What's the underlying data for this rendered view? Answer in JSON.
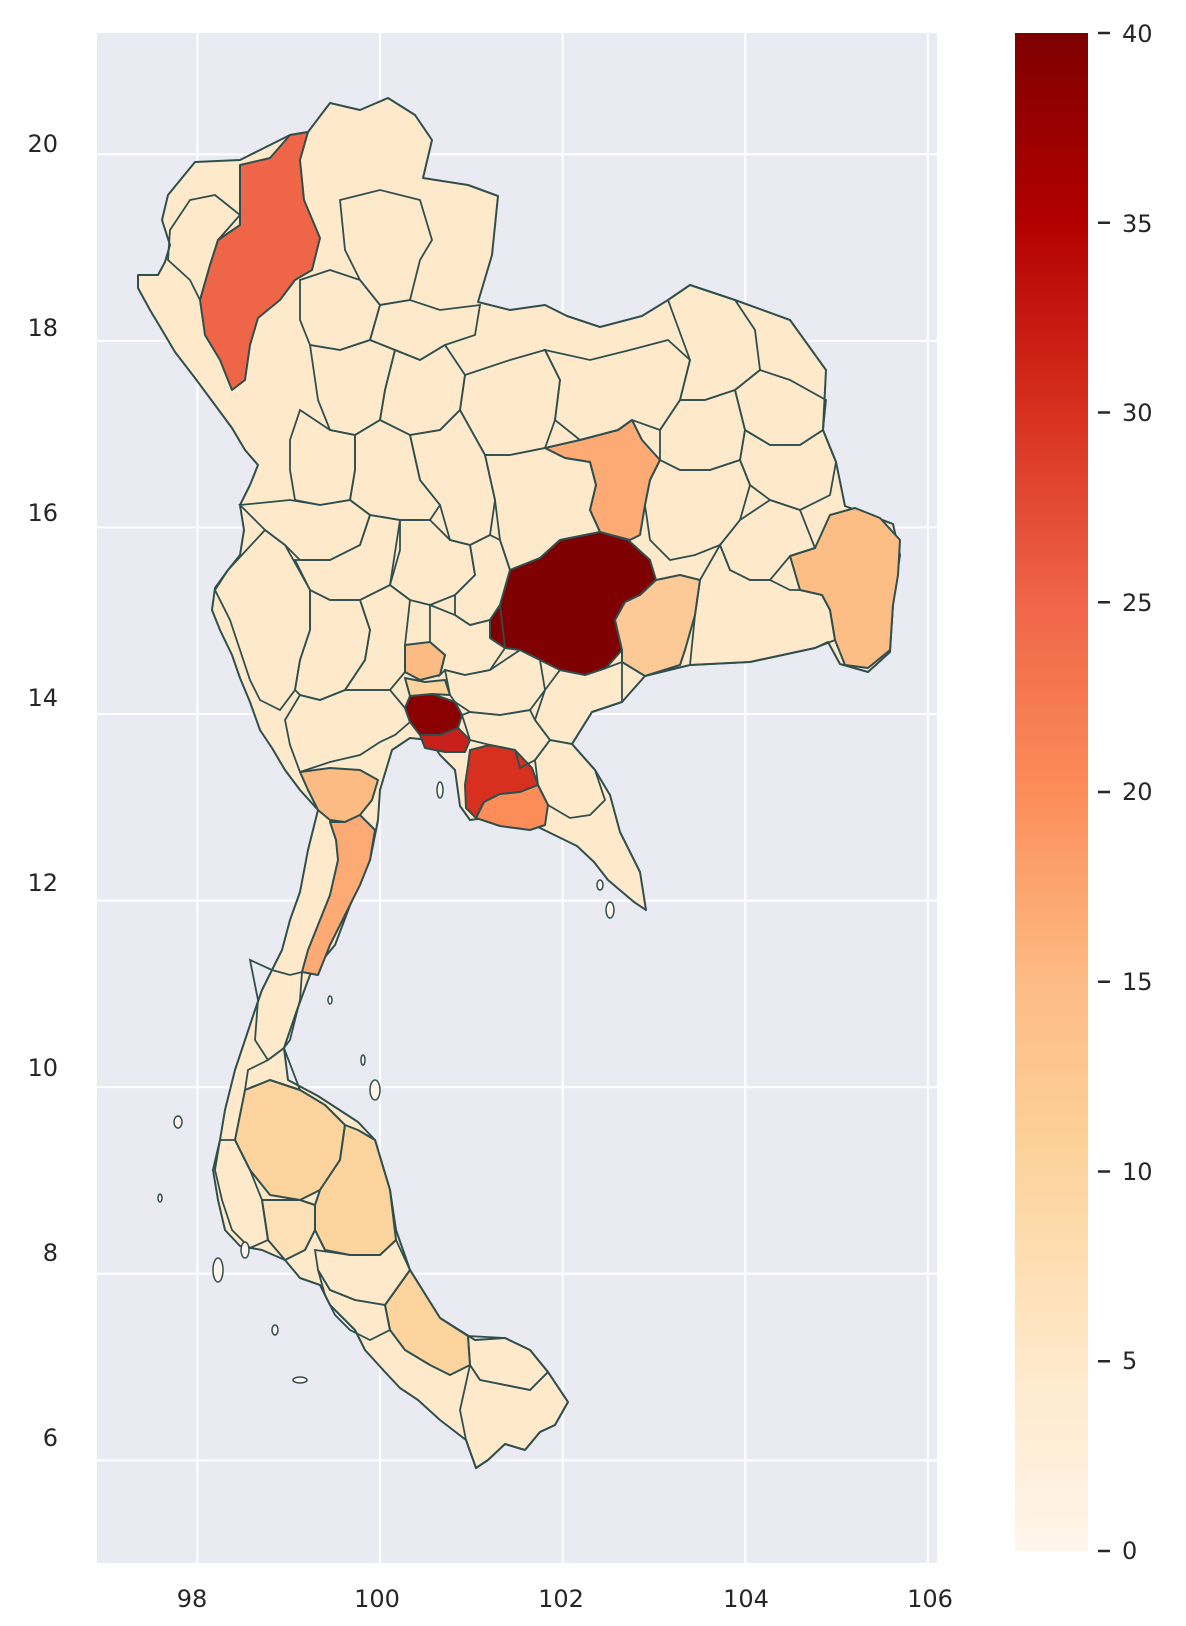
{
  "colors": {
    "plot_background": "#eaeaf2",
    "grid": "#ffffff",
    "border": "#2f4f4f",
    "colormap": "OrRd"
  },
  "x_ticks": [
    "98",
    "100",
    "102",
    "104",
    "106"
  ],
  "y_ticks": [
    "20",
    "18",
    "16",
    "14",
    "12",
    "10",
    "8",
    "6"
  ],
  "colorbar": {
    "ticks": [
      "0",
      "5",
      "10",
      "15",
      "20",
      "25",
      "30",
      "35",
      "40"
    ]
  },
  "chart_data": {
    "type": "choropleth",
    "xlim": [
      96.9,
      106.1
    ],
    "ylim": [
      4.9,
      21.3
    ],
    "grid": true,
    "colorbar_range": [
      0,
      40
    ],
    "colorbar_position": "right",
    "x_tick_values": [
      98,
      100,
      102,
      104,
      106
    ],
    "y_tick_values": [
      20,
      18,
      16,
      14,
      12,
      10,
      8,
      6
    ],
    "colorbar_tick_values": [
      0,
      5,
      10,
      15,
      20,
      25,
      30,
      35,
      40
    ],
    "notable_region_values": [
      {
        "value": 40
      },
      {
        "value": 40
      },
      {
        "value": 33
      },
      {
        "value": 31
      },
      {
        "value": 24
      },
      {
        "value": 19
      },
      {
        "value": 17
      },
      {
        "value": 16
      },
      {
        "value": 15
      }
    ]
  }
}
